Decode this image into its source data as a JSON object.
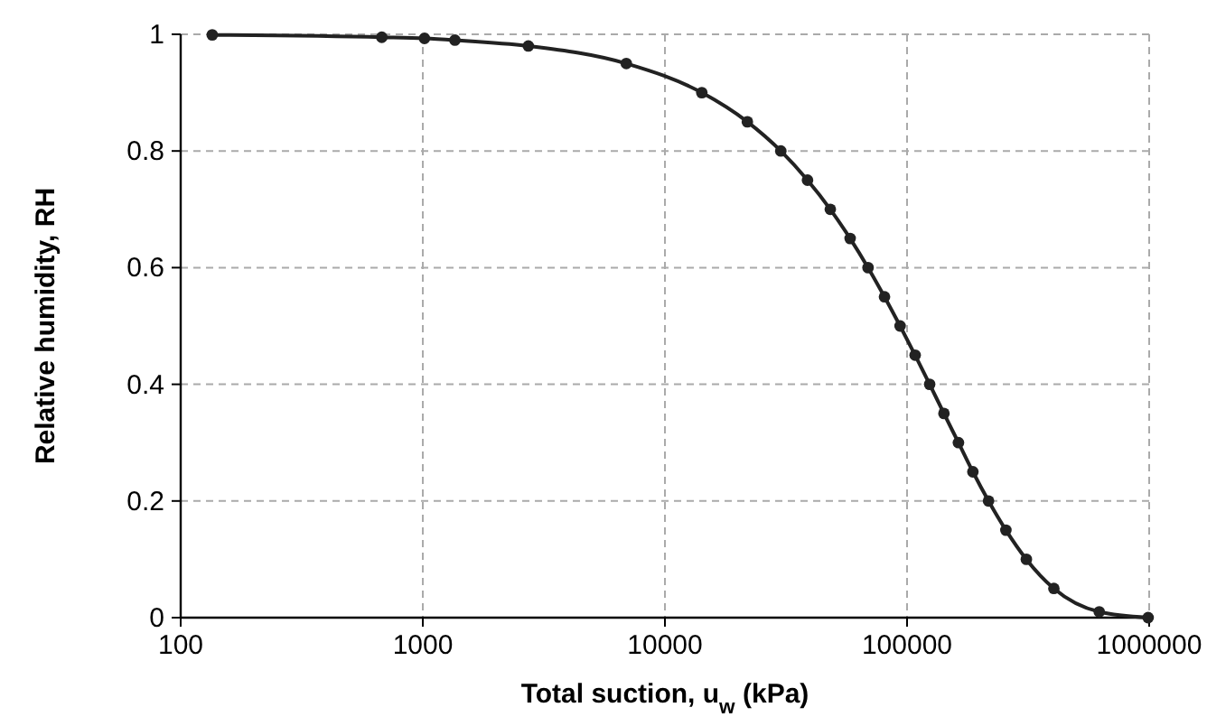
{
  "chart_data": {
    "type": "line",
    "xlabel": "Total suction, u$_{w}$ (kPa)",
    "ylabel": "Relative humidity, RH",
    "log": "x",
    "x": [
      135,
      677,
      1016,
      1357,
      2728,
      6926,
      14200,
      21900,
      30100,
      38800,
      48200,
      58200,
      69000,
      80700,
      93600,
      108000,
      124000,
      142000,
      163000,
      187000,
      217000,
      256000,
      311000,
      404000,
      622000,
      990000
    ],
    "series": [
      {
        "color": "#222222",
        "values": [
          0.999,
          0.995,
          0.993,
          0.99,
          0.98,
          0.95,
          0.9,
          0.85,
          0.8,
          0.75,
          0.7,
          0.65,
          0.6,
          0.55,
          0.5,
          0.45,
          0.4,
          0.35,
          0.3,
          0.25,
          0.2,
          0.15,
          0.1,
          0.05,
          0.01,
          0
        ]
      }
    ],
    "xlim": [
      100,
      1000000
    ],
    "xticks": [
      100,
      1000,
      10000,
      100000,
      1000000
    ],
    "ylim": [
      0,
      1
    ],
    "yticks": [
      0,
      0.2,
      0.4,
      0.6,
      0.8,
      1
    ],
    "grid": true,
    "marker": "circle",
    "line_style": "solid"
  }
}
